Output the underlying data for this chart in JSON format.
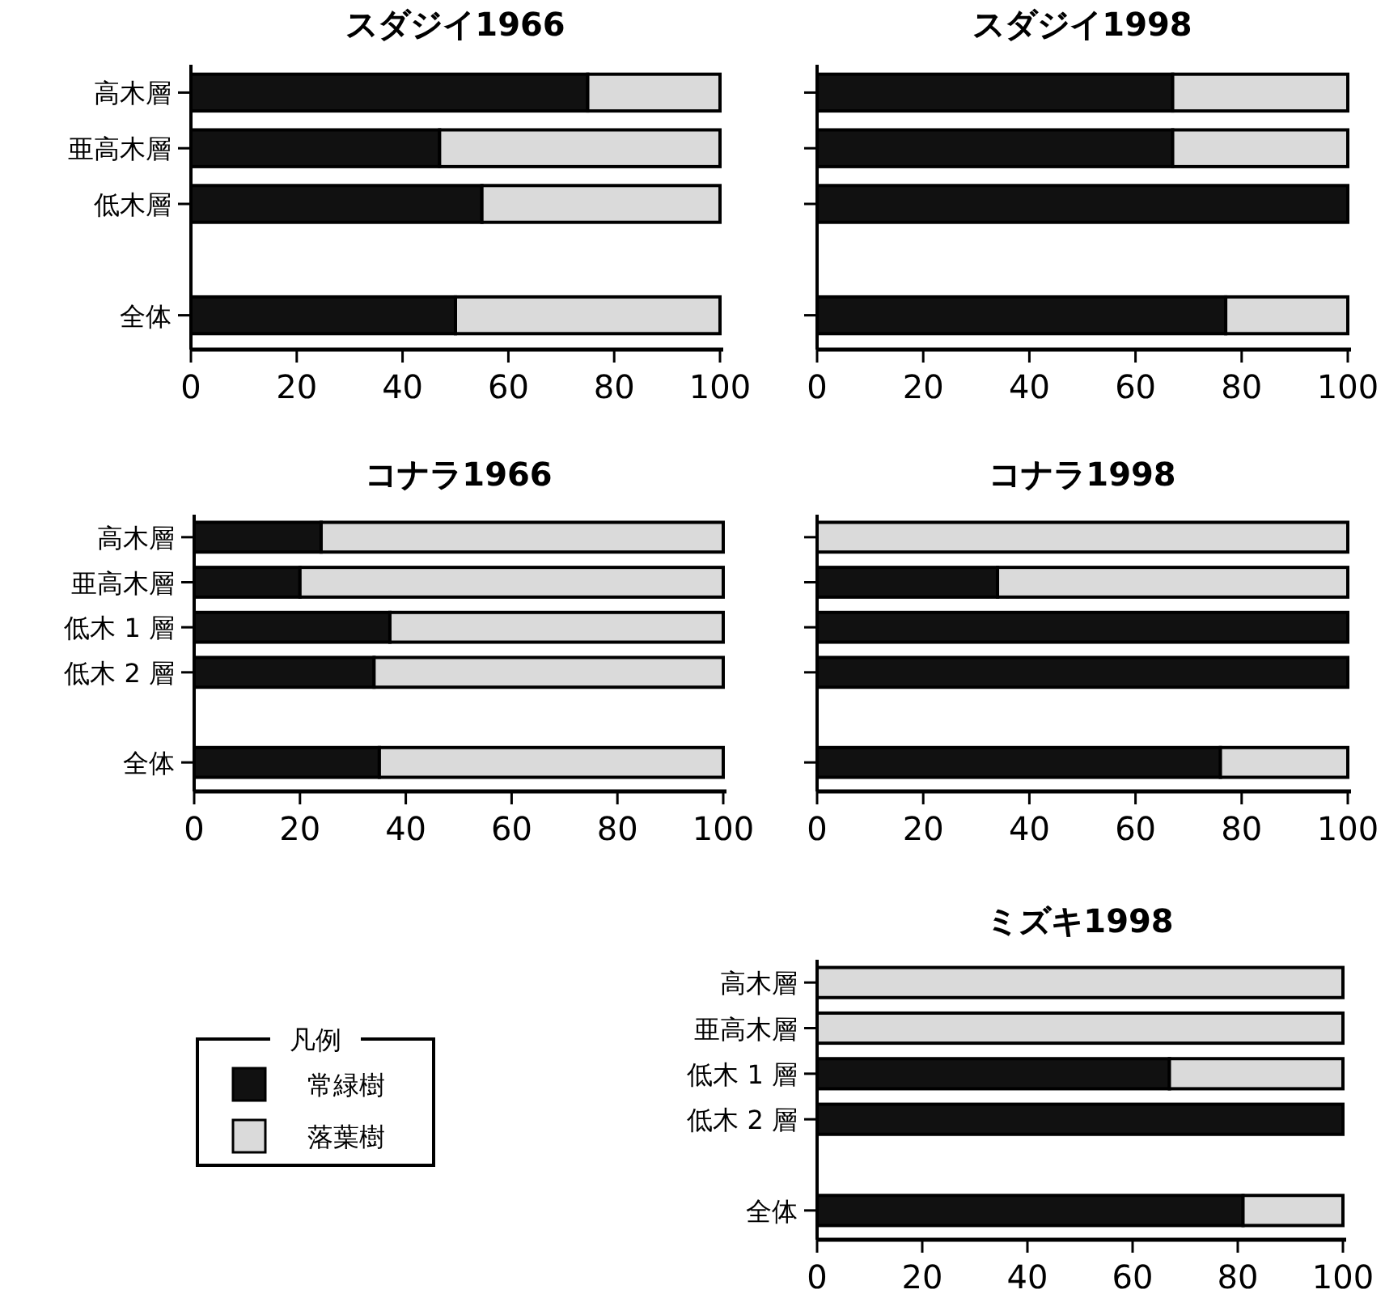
{
  "chart_data": [
    {
      "type": "bar",
      "orientation": "horizontal",
      "stacked": true,
      "title": "スダジイ1966",
      "categories": [
        "高木層",
        "亜高木層",
        "低木層",
        null,
        "全体"
      ],
      "series": [
        {
          "color": "#111111",
          "values": [
            75,
            47,
            55,
            null,
            50
          ]
        },
        {
          "color": "#dadada",
          "values": [
            25,
            53,
            45,
            null,
            50
          ]
        }
      ],
      "xlim": [
        0,
        100
      ],
      "xticks": [
        0,
        20,
        40,
        60,
        80,
        100
      ]
    },
    {
      "type": "bar",
      "orientation": "horizontal",
      "stacked": true,
      "title": "スダジイ1998",
      "categories": [
        null,
        null,
        null,
        null,
        null
      ],
      "series": [
        {
          "color": "#111111",
          "values": [
            67,
            67,
            100,
            null,
            77
          ]
        },
        {
          "color": "#dadada",
          "values": [
            33,
            33,
            0,
            null,
            23
          ]
        }
      ],
      "xlim": [
        0,
        100
      ],
      "xticks": [
        0,
        20,
        40,
        60,
        80,
        100
      ],
      "tick_labels": "x"
    },
    {
      "type": "bar",
      "orientation": "horizontal",
      "stacked": true,
      "title": "コナラ1966",
      "categories": [
        "高木層",
        "亜高木層",
        "低木 1 層",
        "低木 2 層",
        null,
        "全体"
      ],
      "series": [
        {
          "color": "#111111",
          "values": [
            24,
            20,
            37,
            34,
            null,
            35
          ]
        },
        {
          "color": "#dadada",
          "values": [
            76,
            80,
            63,
            66,
            null,
            65
          ]
        }
      ],
      "xlim": [
        0,
        100
      ],
      "xticks": [
        0,
        20,
        40,
        60,
        80,
        100
      ]
    },
    {
      "type": "bar",
      "orientation": "horizontal",
      "stacked": true,
      "title": "コナラ1998",
      "categories": [
        null,
        null,
        null,
        null,
        null,
        null
      ],
      "series": [
        {
          "color": "#111111",
          "values": [
            0,
            34,
            100,
            100,
            null,
            76
          ]
        },
        {
          "color": "#dadada",
          "values": [
            100,
            66,
            0,
            0,
            null,
            24
          ]
        }
      ],
      "xlim": [
        0,
        100
      ],
      "xticks": [
        0,
        20,
        40,
        60,
        80,
        100
      ],
      "tick_labels": "x"
    },
    {
      "type": "bar",
      "orientation": "horizontal",
      "stacked": true,
      "title": "ミズキ1998",
      "categories": [
        "高木層",
        "亜高木層",
        "低木 1 層",
        "低木 2 層",
        null,
        "全体"
      ],
      "series": [
        {
          "name": "常緑樹",
          "color": "#111111",
          "values": [
            0,
            0,
            67,
            100,
            null,
            81
          ]
        },
        {
          "name": "落葉樹",
          "color": "#dadada",
          "values": [
            100,
            100,
            33,
            0,
            null,
            19
          ]
        }
      ],
      "xlim": [
        0,
        100
      ],
      "xticks": [
        0,
        20,
        40,
        60,
        80,
        100
      ],
      "legend": "left",
      "legend_title": "凡例"
    }
  ]
}
